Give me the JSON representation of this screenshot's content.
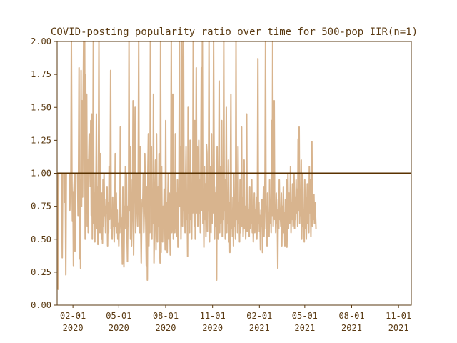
{
  "chart_data": {
    "type": "line",
    "title": "COVID-posting popularity ratio over time for 500-pop IIR(n=1)",
    "xlabel": "",
    "ylabel": "",
    "xlim": [
      "2020-01-01",
      "2021-11-26"
    ],
    "ylim": [
      0.0,
      2.0
    ],
    "grid": false,
    "x_tick_labels": [
      {
        "date": "2020-02-01",
        "line1": "02-01",
        "line2": "2020"
      },
      {
        "date": "2020-05-01",
        "line1": "05-01",
        "line2": "2020"
      },
      {
        "date": "2020-08-01",
        "line1": "08-01",
        "line2": "2020"
      },
      {
        "date": "2020-11-01",
        "line1": "11-01",
        "line2": "2020"
      },
      {
        "date": "2021-02-01",
        "line1": "02-01",
        "line2": "2021"
      },
      {
        "date": "2021-05-01",
        "line1": "05-01",
        "line2": "2021"
      },
      {
        "date": "2021-08-01",
        "line1": "08-01",
        "line2": "2021"
      },
      {
        "date": "2021-11-01",
        "line1": "11-01",
        "line2": "2021"
      }
    ],
    "y_tick_labels": [
      "0.00",
      "0.25",
      "0.50",
      "0.75",
      "1.00",
      "1.25",
      "1.50",
      "1.75",
      "2.00"
    ],
    "reference_line": {
      "y": 1.0,
      "color": "#5a3200"
    },
    "series": [
      {
        "color": "#d8b48e",
        "start_date": "2020-01-01",
        "step_days": 1,
        "values": [
          1.0,
          0.95,
          0.12,
          1.0,
          1.0,
          1.0,
          1.0,
          1.0,
          1.0,
          1.0,
          0.36,
          1.0,
          1.0,
          1.0,
          1.0,
          0.78,
          1.0,
          0.23,
          1.0,
          1.0,
          1.0,
          1.0,
          1.0,
          1.0,
          1.0,
          0.72,
          1.0,
          1.0,
          2.0,
          1.0,
          0.64,
          0.86,
          0.3,
          0.88,
          1.0,
          0.41,
          1.0,
          1.0,
          1.0,
          1.0,
          1.0,
          0.68,
          1.0,
          1.8,
          0.35,
          0.95,
          0.28,
          1.78,
          0.75,
          1.55,
          0.82,
          1.5,
          2.0,
          1.2,
          2.0,
          0.5,
          1.75,
          0.7,
          1.6,
          0.6,
          1.1,
          0.55,
          1.1,
          1.3,
          1.2,
          0.9,
          1.4,
          0.68,
          1.45,
          0.5,
          1.0,
          2.0,
          0.62,
          0.85,
          0.48,
          1.0,
          0.78,
          1.45,
          0.58,
          0.9,
          0.46,
          1.0,
          2.0,
          0.75,
          0.55,
          1.15,
          0.65,
          0.5,
          0.85,
          0.47,
          0.95,
          0.6,
          1.0,
          0.68,
          0.75,
          0.55,
          0.8,
          0.7,
          0.9,
          0.45,
          0.78,
          0.55,
          1.05,
          0.65,
          0.85,
          1.78,
          0.58,
          0.7,
          0.5,
          0.82,
          0.6,
          0.75,
          0.48,
          0.65,
          1.15,
          0.6,
          0.85,
          0.55,
          0.72,
          0.5,
          0.62,
          0.45,
          0.68,
          0.55,
          1.35,
          0.7,
          0.58,
          0.66,
          0.31,
          0.9,
          0.55,
          0.29,
          0.75,
          0.58,
          1.05,
          0.85,
          1.0,
          0.55,
          0.33,
          0.75,
          0.6,
          2.0,
          0.72,
          1.2,
          0.5,
          0.95,
          0.45,
          0.65,
          0.85,
          1.55,
          0.38,
          0.8,
          1.0,
          1.5,
          0.55,
          0.7,
          0.8,
          1.0,
          0.6,
          0.9,
          2.0,
          0.7,
          0.55,
          1.2,
          0.62,
          0.32,
          0.68,
          0.8,
          0.75,
          1.0,
          0.55,
          0.72,
          1.15,
          0.85,
          0.6,
          0.3,
          0.9,
          0.19,
          1.0,
          1.3,
          0.45,
          0.7,
          0.55,
          2.0,
          0.8,
          1.2,
          0.5,
          0.88,
          0.62,
          1.6,
          0.32,
          0.58,
          0.85,
          1.1,
          0.42,
          1.3,
          0.7,
          0.48,
          0.9,
          0.6,
          1.15,
          0.5,
          0.32,
          2.0,
          0.4,
          1.05,
          0.56,
          0.48,
          0.75,
          0.6,
          0.88,
          0.7,
          0.42,
          1.4,
          0.46,
          0.78,
          0.4,
          0.75,
          1.0,
          0.5,
          0.85,
          0.62,
          0.38,
          0.92,
          2.0,
          0.55,
          0.7,
          1.6,
          0.5,
          1.0,
          0.6,
          0.55,
          1.3,
          0.58,
          0.85,
          0.52,
          0.95,
          0.44,
          0.65,
          0.9,
          2.0,
          0.75,
          1.2,
          0.5,
          1.0,
          2.0,
          0.6,
          0.85,
          2.0,
          0.72,
          1.0,
          0.55,
          0.9,
          1.2,
          0.65,
          0.8,
          0.37,
          1.5,
          0.7,
          0.95,
          0.55,
          1.25,
          0.65,
          0.85,
          0.5,
          1.0,
          0.7,
          2.0,
          0.9,
          0.6,
          1.4,
          0.5,
          1.0,
          1.8,
          0.7,
          1.2,
          0.6,
          0.85,
          1.25,
          0.7,
          0.95,
          0.55,
          1.1,
          1.8,
          0.72,
          2.0,
          0.62,
          0.88,
          0.44,
          1.05,
          0.65,
          0.92,
          0.52,
          1.22,
          1.15,
          0.56,
          0.85,
          0.72,
          2.0,
          0.48,
          1.05,
          0.75,
          0.55,
          1.3,
          0.62,
          1.0,
          0.7,
          2.0,
          1.1,
          0.5,
          0.85,
          0.6,
          0.9,
          0.19,
          1.2,
          0.7,
          0.5,
          0.85,
          1.7,
          0.55,
          1.05,
          0.62,
          0.75,
          1.4,
          0.52,
          0.88,
          0.65,
          2.0,
          0.72,
          0.95,
          0.5,
          0.68,
          1.5,
          0.55,
          0.85,
          0.62,
          1.1,
          0.48,
          0.78,
          0.4,
          0.92,
          1.6,
          0.58,
          0.7,
          0.52,
          0.82,
          0.45,
          1.0,
          0.6,
          0.74,
          0.5,
          2.0,
          0.65,
          0.88,
          0.55,
          1.2,
          0.62,
          0.78,
          0.48,
          0.95,
          0.55,
          0.7,
          1.35,
          0.6,
          0.82,
          0.52,
          0.68,
          1.1,
          0.58,
          0.75,
          0.5,
          0.65,
          1.45,
          0.56,
          0.8,
          0.62,
          0.72,
          0.52,
          0.9,
          0.58,
          0.7,
          0.62,
          0.95,
          0.55,
          0.75,
          0.48,
          0.65,
          0.85,
          0.55,
          0.72,
          0.6,
          0.82,
          0.5,
          0.7,
          1.87,
          0.62,
          0.78,
          0.56,
          0.68,
          0.42,
          0.72,
          0.6,
          0.8,
          0.4,
          0.65,
          0.9,
          0.52,
          0.7,
          1.0,
          2.0,
          0.58,
          0.75,
          0.45,
          0.85,
          0.6,
          0.7,
          0.52,
          0.95,
          0.62,
          0.8,
          0.55,
          1.4,
          0.68,
          2.0,
          0.6,
          0.78,
          1.55,
          0.65,
          0.75,
          0.55,
          0.85,
          0.62,
          0.72,
          0.28,
          0.8,
          0.58,
          0.95,
          0.65,
          0.7,
          0.6,
          0.85,
          0.45,
          0.75,
          0.62,
          0.9,
          0.55,
          0.7,
          0.45,
          0.8,
          0.6,
          0.95,
          0.44,
          0.72,
          1.0,
          0.58,
          0.85,
          0.62,
          0.7,
          1.05,
          0.55,
          0.78,
          0.65,
          0.92,
          0.6,
          0.75,
          1.0,
          0.58,
          0.82,
          0.65,
          0.95,
          0.7,
          0.88,
          0.6,
          1.26,
          0.72,
          1.35,
          0.62,
          0.85,
          0.68,
          1.1,
          0.5,
          0.78,
          1.0,
          0.6,
          0.72,
          0.48,
          0.95,
          0.58,
          0.82,
          0.5,
          0.7,
          0.92,
          0.62,
          0.85,
          0.55,
          1.05,
          0.7,
          0.95,
          0.52,
          0.88,
          1.24,
          0.6,
          0.75,
          0.65,
          0.84,
          0.62,
          0.78,
          0.7,
          0.58
        ]
      }
    ]
  }
}
